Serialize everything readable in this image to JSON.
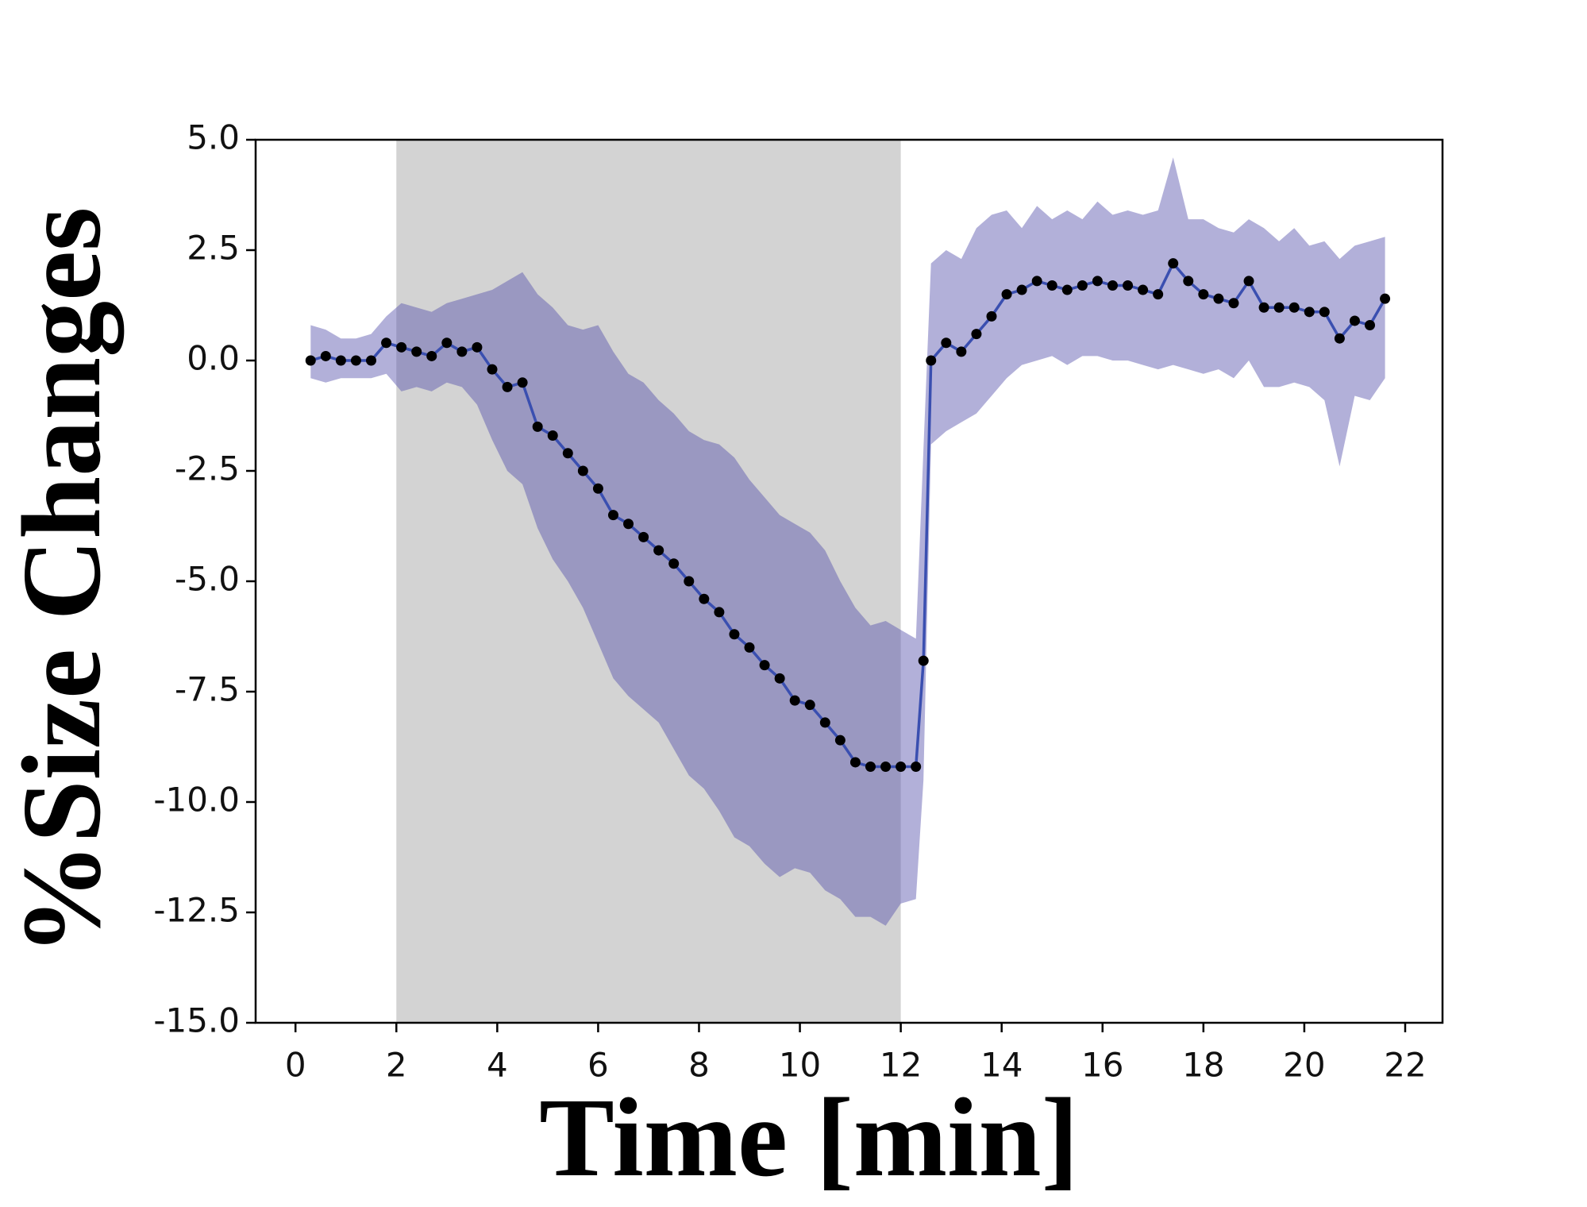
{
  "chart_data": {
    "type": "line",
    "xlabel": "Time [min]",
    "ylabel": "%Size Changes",
    "xlim": [
      -0.79,
      22.74
    ],
    "ylim": [
      -15,
      5
    ],
    "xticks": [
      0,
      2,
      4,
      6,
      8,
      10,
      12,
      14,
      16,
      18,
      20,
      22
    ],
    "yticks": [
      {
        "value": 5,
        "label": "5.0"
      },
      {
        "value": 2.5,
        "label": "2.5"
      },
      {
        "value": 0,
        "label": "0.0"
      },
      {
        "value": -2.5,
        "label": "-2.5"
      },
      {
        "value": -5,
        "label": "-5.0"
      },
      {
        "value": -7.5,
        "label": "-7.5"
      },
      {
        "value": -10,
        "label": "-10.0"
      },
      {
        "value": -12.5,
        "label": "-12.5"
      },
      {
        "value": -15,
        "label": "-15.0"
      }
    ],
    "highlight_span": [
      2,
      12
    ],
    "highlight_color": "#d3d3d3",
    "line_color": "#3a4fb0",
    "marker_color": "#000000",
    "band_color": "#5450aa",
    "x": [
      0.3,
      0.6,
      0.9,
      1.2,
      1.5,
      1.8,
      2.1,
      2.4,
      2.7,
      3.0,
      3.3,
      3.6,
      3.9,
      4.2,
      4.5,
      4.8,
      5.1,
      5.4,
      5.7,
      6.0,
      6.3,
      6.6,
      6.9,
      7.2,
      7.5,
      7.8,
      8.1,
      8.4,
      8.7,
      9.0,
      9.3,
      9.6,
      9.9,
      10.2,
      10.5,
      10.8,
      11.1,
      11.4,
      11.7,
      12.0,
      12.3,
      12.45,
      12.6,
      12.9,
      13.2,
      13.5,
      13.8,
      14.1,
      14.4,
      14.7,
      15.0,
      15.3,
      15.6,
      15.9,
      16.2,
      16.5,
      16.8,
      17.1,
      17.4,
      17.7,
      18.0,
      18.3,
      18.6,
      18.9,
      19.2,
      19.5,
      19.8,
      20.1,
      20.4,
      20.7,
      21.0,
      21.3,
      21.6
    ],
    "values": [
      0.0,
      0.1,
      0.0,
      0.0,
      0.0,
      0.4,
      0.3,
      0.2,
      0.1,
      0.4,
      0.2,
      0.3,
      -0.2,
      -0.6,
      -0.5,
      -1.5,
      -1.7,
      -2.1,
      -2.5,
      -2.9,
      -3.5,
      -3.7,
      -4.0,
      -4.3,
      -4.6,
      -5.0,
      -5.4,
      -5.7,
      -6.2,
      -6.5,
      -6.9,
      -7.2,
      -7.7,
      -7.8,
      -8.2,
      -8.6,
      -9.1,
      -9.2,
      -9.2,
      -9.2,
      -9.2,
      -6.8,
      0.0,
      0.4,
      0.2,
      0.6,
      1.0,
      1.5,
      1.6,
      1.8,
      1.7,
      1.6,
      1.7,
      1.8,
      1.7,
      1.7,
      1.6,
      1.5,
      2.2,
      1.8,
      1.5,
      1.4,
      1.3,
      1.8,
      1.2,
      1.2,
      1.2,
      1.1,
      1.1,
      0.5,
      0.9,
      0.8,
      1.4
    ],
    "upper": [
      0.8,
      0.7,
      0.5,
      0.5,
      0.6,
      1.0,
      1.3,
      1.2,
      1.1,
      1.3,
      1.4,
      1.5,
      1.6,
      1.8,
      2.0,
      1.5,
      1.2,
      0.8,
      0.7,
      0.8,
      0.2,
      -0.3,
      -0.5,
      -0.9,
      -1.2,
      -1.6,
      -1.8,
      -1.9,
      -2.2,
      -2.7,
      -3.1,
      -3.5,
      -3.7,
      -3.9,
      -4.3,
      -5.0,
      -5.6,
      -6.0,
      -5.9,
      -6.1,
      -6.3,
      -2.0,
      2.2,
      2.5,
      2.3,
      3.0,
      3.3,
      3.4,
      3.0,
      3.5,
      3.2,
      3.4,
      3.2,
      3.6,
      3.3,
      3.4,
      3.3,
      3.4,
      4.6,
      3.2,
      3.2,
      3.0,
      2.9,
      3.2,
      3.0,
      2.7,
      3.0,
      2.6,
      2.7,
      2.3,
      2.6,
      2.7,
      2.8
    ],
    "lower": [
      -0.4,
      -0.5,
      -0.4,
      -0.4,
      -0.4,
      -0.3,
      -0.7,
      -0.6,
      -0.7,
      -0.5,
      -0.6,
      -1.0,
      -1.8,
      -2.5,
      -2.8,
      -3.8,
      -4.5,
      -5.0,
      -5.6,
      -6.4,
      -7.2,
      -7.6,
      -7.9,
      -8.2,
      -8.8,
      -9.4,
      -9.7,
      -10.2,
      -10.8,
      -11.0,
      -11.4,
      -11.7,
      -11.5,
      -11.6,
      -12.0,
      -12.2,
      -12.6,
      -12.6,
      -12.8,
      -12.3,
      -12.2,
      -9.5,
      -1.9,
      -1.6,
      -1.4,
      -1.2,
      -0.8,
      -0.4,
      -0.1,
      0.0,
      0.1,
      -0.1,
      0.1,
      0.1,
      0.0,
      0.0,
      -0.1,
      -0.2,
      -0.1,
      -0.2,
      -0.3,
      -0.2,
      -0.4,
      0.0,
      -0.6,
      -0.6,
      -0.5,
      -0.6,
      -0.9,
      -2.4,
      -0.8,
      -0.9,
      -0.4
    ]
  }
}
